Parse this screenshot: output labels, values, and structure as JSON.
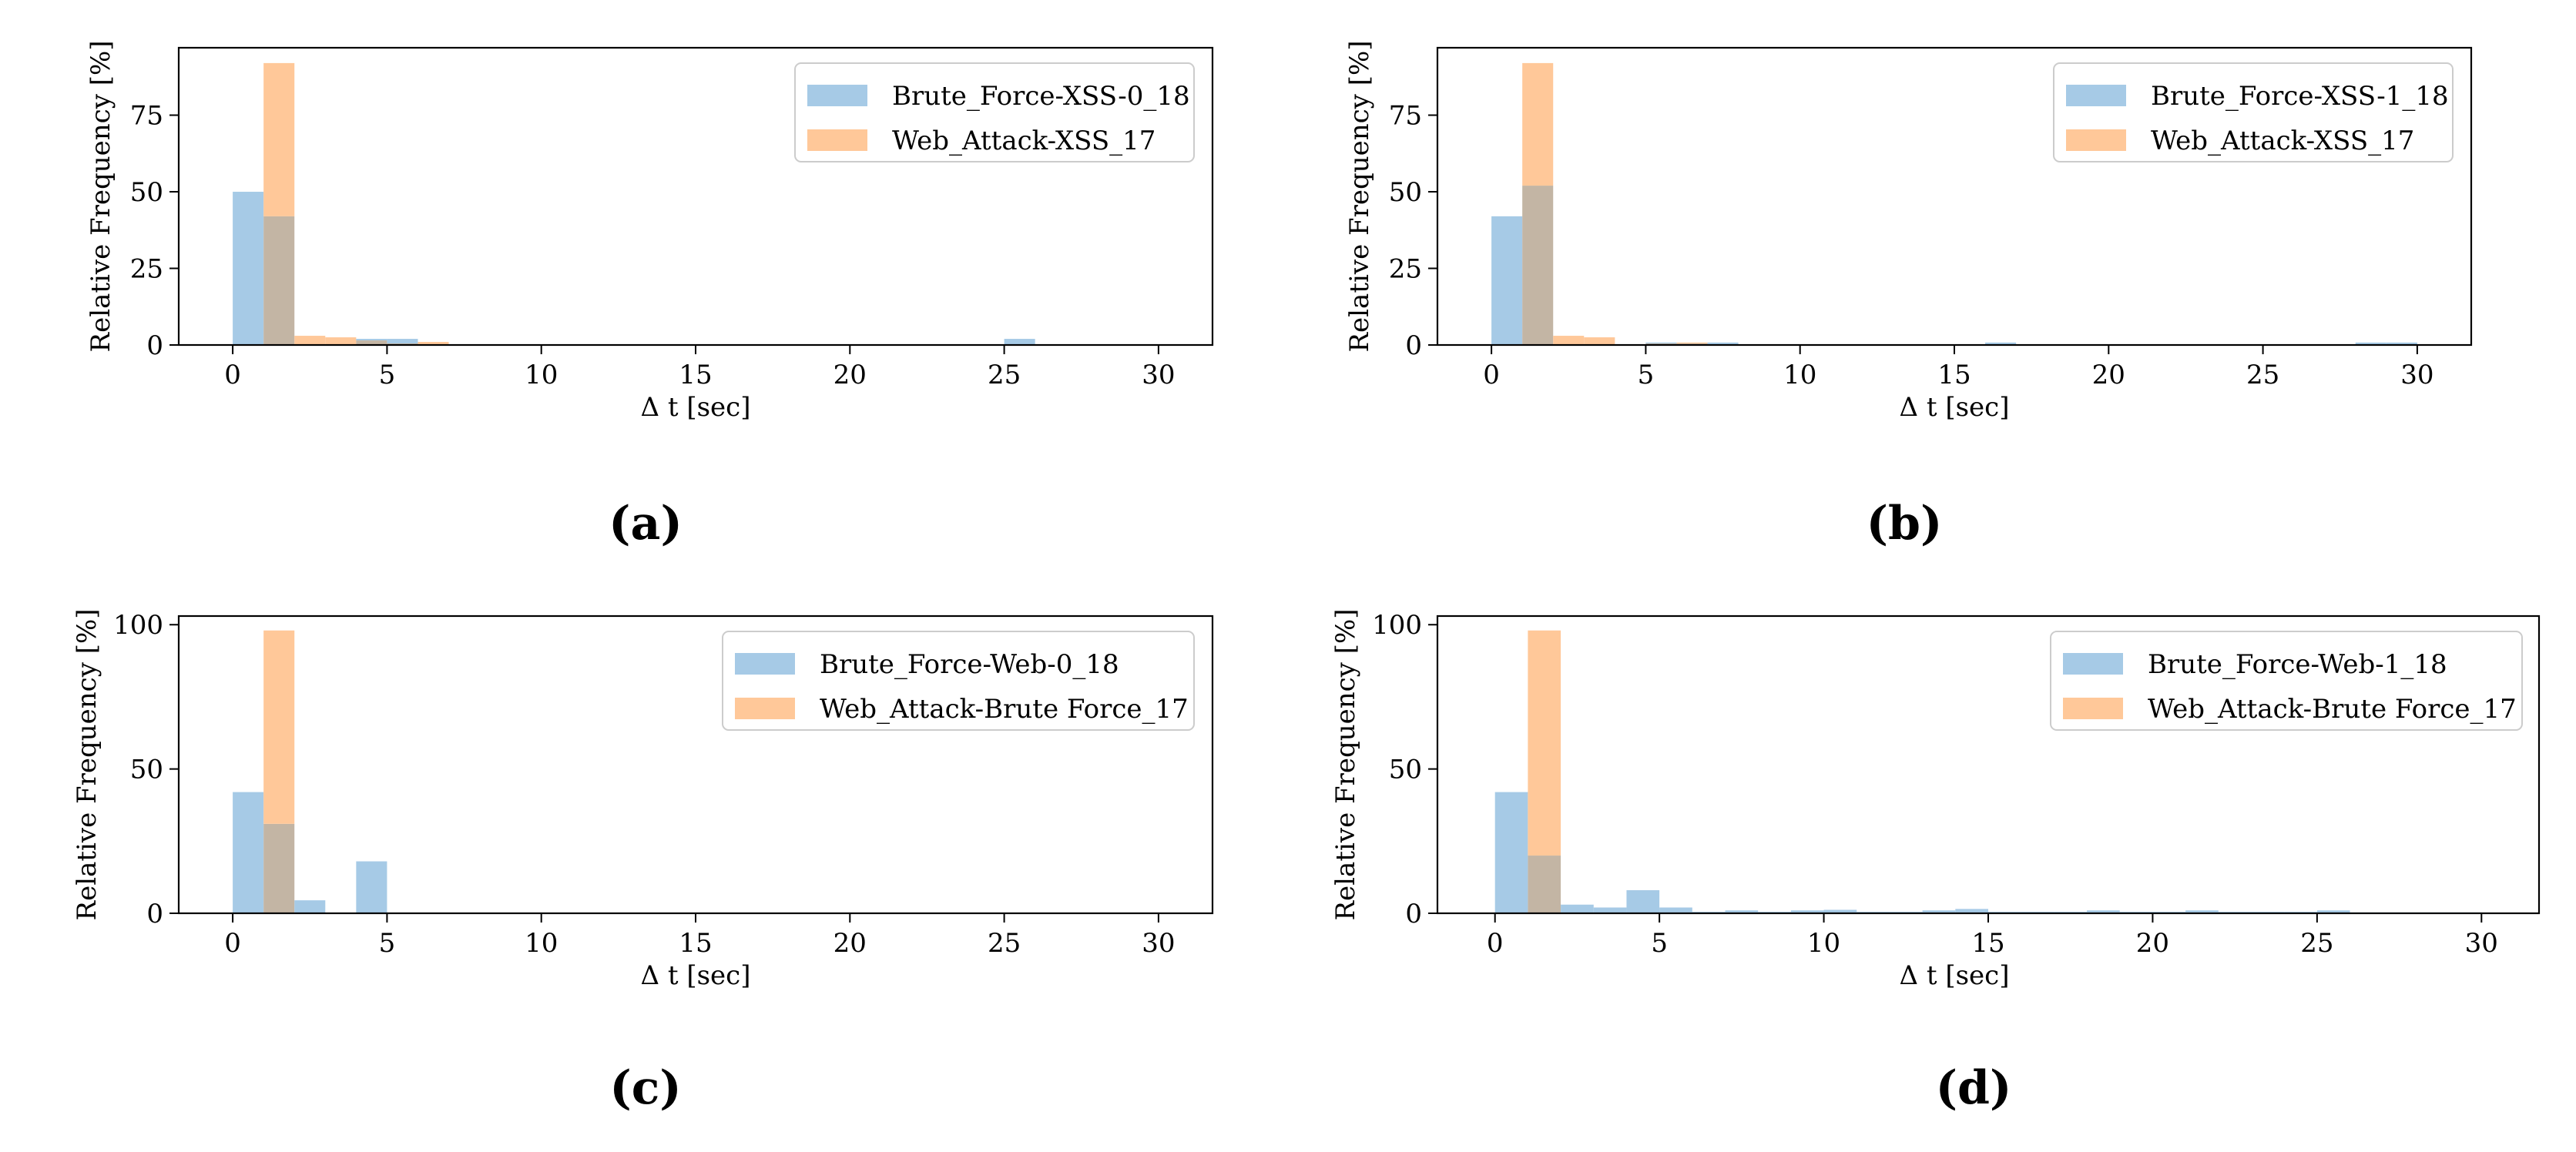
{
  "colors": {
    "series1": "#a6cae6",
    "series2": "#ffc899",
    "overlap": "#c3b5a4",
    "axis": "#000000"
  },
  "chart_data": [
    {
      "type": "bar",
      "panel_label": "(a)",
      "xlabel": "Δ t [sec]",
      "ylabel": "Relative Frequency [%]",
      "xlim": [
        -1.75,
        31.75
      ],
      "ylim": [
        0,
        97
      ],
      "xticks": [
        0,
        5,
        10,
        15,
        20,
        25,
        30
      ],
      "yticks": [
        0,
        25,
        50,
        75
      ],
      "bin_edges": [
        0,
        1,
        2,
        3,
        4,
        5,
        6,
        7,
        8,
        9,
        10,
        11,
        12,
        13,
        14,
        15,
        16,
        17,
        18,
        19,
        20,
        21,
        22,
        23,
        24,
        25,
        26,
        27,
        28,
        29,
        30
      ],
      "legend_position": "top-right",
      "series": [
        {
          "name": "Brute_Force-XSS-0_18",
          "values": [
            50,
            42,
            0,
            0,
            2,
            2,
            0,
            0,
            0,
            0,
            0,
            0,
            0,
            0,
            0,
            0,
            0,
            0,
            0,
            0,
            0,
            0,
            0,
            0,
            0,
            2,
            0,
            0,
            0,
            0
          ]
        },
        {
          "name": "Web_Attack-XSS_17",
          "values": [
            0,
            92,
            3,
            2.5,
            1.5,
            0.5,
            1,
            0,
            0,
            0,
            0,
            0,
            0,
            0,
            0,
            0,
            0,
            0,
            0,
            0,
            0,
            0,
            0,
            0,
            0,
            0,
            0,
            0,
            0,
            0
          ]
        }
      ]
    },
    {
      "type": "bar",
      "panel_label": "(b)",
      "xlabel": "Δ t [sec]",
      "ylabel": "Relative Frequency [%]",
      "xlim": [
        -1.75,
        31.75
      ],
      "ylim": [
        0,
        97
      ],
      "xticks": [
        0,
        5,
        10,
        15,
        20,
        25,
        30
      ],
      "yticks": [
        0,
        25,
        50,
        75
      ],
      "bin_edges": [
        0,
        1,
        2,
        3,
        4,
        5,
        6,
        7,
        8,
        9,
        10,
        11,
        12,
        13,
        14,
        15,
        16,
        17,
        18,
        19,
        20,
        21,
        22,
        23,
        24,
        25,
        26,
        27,
        28,
        29,
        30
      ],
      "legend_position": "top-right",
      "series": [
        {
          "name": "Brute_Force-XSS-1_18",
          "values": [
            42,
            52,
            0,
            0,
            0,
            0.8,
            0.5,
            0.8,
            0,
            0,
            0,
            0,
            0,
            0,
            0,
            0,
            0.8,
            0,
            0,
            0,
            0,
            0,
            0,
            0,
            0,
            0,
            0,
            0,
            0.8,
            0.8
          ]
        },
        {
          "name": "Web_Attack-XSS_17",
          "values": [
            0,
            92,
            3,
            2.5,
            0,
            0.5,
            0.8,
            0,
            0,
            0,
            0,
            0,
            0,
            0,
            0,
            0,
            0,
            0,
            0,
            0,
            0,
            0,
            0,
            0,
            0,
            0,
            0,
            0,
            0,
            0
          ]
        }
      ]
    },
    {
      "type": "bar",
      "panel_label": "(c)",
      "xlabel": "Δ t [sec]",
      "ylabel": "Relative Frequency [%]",
      "xlim": [
        -1.75,
        31.75
      ],
      "ylim": [
        0,
        103
      ],
      "xticks": [
        0,
        5,
        10,
        15,
        20,
        25,
        30
      ],
      "yticks": [
        0,
        50,
        100
      ],
      "bin_edges": [
        0,
        1,
        2,
        3,
        4,
        5,
        6,
        7,
        8,
        9,
        10,
        11,
        12,
        13,
        14,
        15,
        16,
        17,
        18,
        19,
        20,
        21,
        22,
        23,
        24,
        25,
        26,
        27,
        28,
        29,
        30
      ],
      "legend_position": "top-right",
      "series": [
        {
          "name": "Brute_Force-Web-0_18",
          "values": [
            42,
            31,
            4.5,
            0,
            18,
            0,
            0,
            0,
            0,
            0,
            0,
            0,
            0,
            0,
            0,
            0,
            0,
            0,
            0,
            0,
            0,
            0,
            0,
            0,
            0,
            0,
            0,
            0,
            0,
            0
          ]
        },
        {
          "name": "Web_Attack-Brute Force_17",
          "values": [
            0,
            98,
            0,
            0,
            0,
            0,
            0,
            0,
            0,
            0,
            0,
            0,
            0,
            0,
            0,
            0,
            0,
            0,
            0,
            0,
            0,
            0,
            0,
            0,
            0,
            0,
            0,
            0,
            0,
            0
          ]
        }
      ]
    },
    {
      "type": "bar",
      "panel_label": "(d)",
      "xlabel": "Δ t [sec]",
      "ylabel": "Relative Frequency [%]",
      "xlim": [
        -1.75,
        31.75
      ],
      "ylim": [
        0,
        103
      ],
      "xticks": [
        0,
        5,
        10,
        15,
        20,
        25,
        30
      ],
      "yticks": [
        0,
        50,
        100
      ],
      "bin_edges": [
        0,
        1,
        2,
        3,
        4,
        5,
        6,
        7,
        8,
        9,
        10,
        11,
        12,
        13,
        14,
        15,
        16,
        17,
        18,
        19,
        20,
        21,
        22,
        23,
        24,
        25,
        26,
        27,
        28,
        29,
        30
      ],
      "legend_position": "top-right",
      "series": [
        {
          "name": "Brute_Force-Web-1_18",
          "values": [
            42,
            20,
            3,
            2,
            8,
            2,
            0.5,
            1,
            0.5,
            1,
            1.2,
            0.5,
            0.5,
            1,
            1.5,
            0.5,
            0.5,
            0.5,
            1,
            0.5,
            0.5,
            1,
            0.5,
            0.5,
            0.5,
            1,
            0.3,
            0.3,
            0.3,
            0.3
          ]
        },
        {
          "name": "Web_Attack-Brute Force_17",
          "values": [
            0,
            98,
            0,
            0,
            0,
            0,
            0,
            0,
            0,
            0,
            0,
            0,
            0,
            0,
            0,
            0,
            0,
            0,
            0,
            0,
            0,
            0,
            0,
            0,
            0,
            0,
            0,
            0,
            0,
            0
          ]
        }
      ]
    }
  ]
}
